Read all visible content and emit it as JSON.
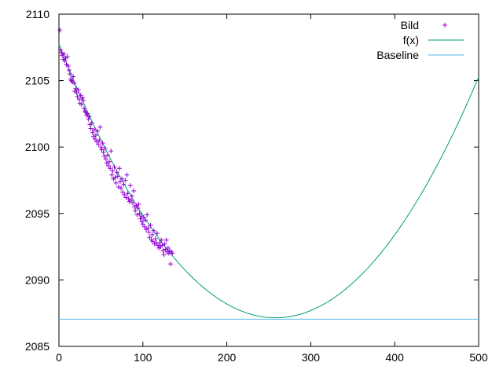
{
  "chart_data": {
    "type": "scatter",
    "title": "",
    "xlabel": "",
    "ylabel": "",
    "xlim": [
      0,
      500
    ],
    "ylim": [
      2085,
      2110
    ],
    "x_ticks": [
      "0",
      "100",
      "200",
      "300",
      "400",
      "500"
    ],
    "y_ticks": [
      "2085",
      "2090",
      "2095",
      "2100",
      "2105",
      "2110"
    ],
    "grid": false,
    "legend_position": "top-right",
    "series": [
      {
        "name": "Bild",
        "kind": "points",
        "marker": "plus",
        "color": "#9400d3",
        "points": [
          [
            1,
            2108.8
          ],
          [
            2,
            2107.3
          ],
          [
            3,
            2107.1
          ],
          [
            4,
            2106.9
          ],
          [
            5,
            2106.6
          ],
          [
            6,
            2107.0
          ],
          [
            7,
            2106.5
          ],
          [
            8,
            2106.7
          ],
          [
            9,
            2106.2
          ],
          [
            10,
            2106.8
          ],
          [
            11,
            2106.1
          ],
          [
            12,
            2105.8
          ],
          [
            13,
            2105.5
          ],
          [
            14,
            2105.1
          ],
          [
            15,
            2105.0
          ],
          [
            16,
            2104.9
          ],
          [
            17,
            2105.3
          ],
          [
            18,
            2104.8
          ],
          [
            19,
            2104.2
          ],
          [
            20,
            2104.4
          ],
          [
            21,
            2104.1
          ],
          [
            22,
            2103.8
          ],
          [
            23,
            2104.3
          ],
          [
            24,
            2103.6
          ],
          [
            25,
            2103.3
          ],
          [
            26,
            2103.9
          ],
          [
            27,
            2103.2
          ],
          [
            28,
            2103.7
          ],
          [
            29,
            2103.5
          ],
          [
            30,
            2102.9
          ],
          [
            31,
            2102.7
          ],
          [
            32,
            2102.6
          ],
          [
            33,
            2102.4
          ],
          [
            34,
            2102.5
          ],
          [
            35,
            2102.1
          ],
          [
            36,
            2102.3
          ],
          [
            37,
            2101.7
          ],
          [
            38,
            2101.4
          ],
          [
            39,
            2101.8
          ],
          [
            40,
            2101.1
          ],
          [
            41,
            2100.8
          ],
          [
            42,
            2101.3
          ],
          [
            43,
            2100.6
          ],
          [
            44,
            2100.9
          ],
          [
            45,
            2100.4
          ],
          [
            46,
            2101.2
          ],
          [
            47,
            2100.2
          ],
          [
            48,
            2100.5
          ],
          [
            49,
            2101.5
          ],
          [
            50,
            2100.0
          ],
          [
            51,
            2099.8
          ],
          [
            52,
            2100.3
          ],
          [
            53,
            2099.6
          ],
          [
            54,
            2099.3
          ],
          [
            55,
            2099.9
          ],
          [
            56,
            2099.1
          ],
          [
            57,
            2098.8
          ],
          [
            58,
            2099.4
          ],
          [
            59,
            2098.6
          ],
          [
            60,
            2098.9
          ],
          [
            61,
            2098.4
          ],
          [
            62,
            2099.7
          ],
          [
            63,
            2097.9
          ],
          [
            64,
            2098.2
          ],
          [
            65,
            2097.6
          ],
          [
            66,
            2098.5
          ],
          [
            67,
            2097.7
          ],
          [
            68,
            2097.3
          ],
          [
            69,
            2098.1
          ],
          [
            70,
            2097.8
          ],
          [
            71,
            2097.0
          ],
          [
            72,
            2098.4
          ],
          [
            73,
            2097.4
          ],
          [
            74,
            2096.9
          ],
          [
            75,
            2097.6
          ],
          [
            76,
            2096.6
          ],
          [
            77,
            2097.2
          ],
          [
            78,
            2096.4
          ],
          [
            79,
            2097.5
          ],
          [
            80,
            2096.2
          ],
          [
            81,
            2097.9
          ],
          [
            82,
            2096.5
          ],
          [
            83,
            2096.1
          ],
          [
            84,
            2095.9
          ],
          [
            85,
            2097.1
          ],
          [
            86,
            2096.0
          ],
          [
            87,
            2096.3
          ],
          [
            88,
            2095.8
          ],
          [
            89,
            2096.7
          ],
          [
            90,
            2095.5
          ],
          [
            91,
            2095.2
          ],
          [
            92,
            2095.6
          ],
          [
            93,
            2094.9
          ],
          [
            94,
            2095.4
          ],
          [
            95,
            2095.7
          ],
          [
            96,
            2095.0
          ],
          [
            97,
            2094.6
          ],
          [
            98,
            2094.8
          ],
          [
            99,
            2094.4
          ],
          [
            100,
            2094.2
          ],
          [
            101,
            2094.7
          ],
          [
            102,
            2094.0
          ],
          [
            103,
            2094.5
          ],
          [
            104,
            2093.8
          ],
          [
            105,
            2094.9
          ],
          [
            106,
            2093.9
          ],
          [
            107,
            2093.6
          ],
          [
            108,
            2093.2
          ],
          [
            109,
            2094.1
          ],
          [
            110,
            2093.0
          ],
          [
            111,
            2093.4
          ],
          [
            112,
            2092.9
          ],
          [
            113,
            2093.7
          ],
          [
            114,
            2092.7
          ],
          [
            115,
            2093.1
          ],
          [
            116,
            2092.8
          ],
          [
            117,
            2093.5
          ],
          [
            118,
            2092.6
          ],
          [
            119,
            2092.4
          ],
          [
            120,
            2092.8
          ],
          [
            121,
            2092.5
          ],
          [
            122,
            2093.0
          ],
          [
            123,
            2092.6
          ],
          [
            124,
            2092.2
          ],
          [
            125,
            2091.9
          ],
          [
            126,
            2092.7
          ],
          [
            127,
            2092.3
          ],
          [
            128,
            2093.0
          ],
          [
            129,
            2092.1
          ],
          [
            130,
            2092.4
          ],
          [
            131,
            2092.0
          ],
          [
            132,
            2092.2
          ],
          [
            133,
            2091.2
          ],
          [
            134,
            2092.1
          ],
          [
            135,
            2092.0
          ]
        ]
      },
      {
        "name": "f(x)",
        "kind": "curve",
        "color": "#009e73",
        "x_range": [
          0,
          500
        ],
        "min_x": 258,
        "min_y": 2087.15,
        "quadratic_coefficient": 0.0003094
      },
      {
        "name": "Baseline",
        "kind": "hline",
        "color": "#56b4e9",
        "y": 2087.05
      }
    ]
  }
}
